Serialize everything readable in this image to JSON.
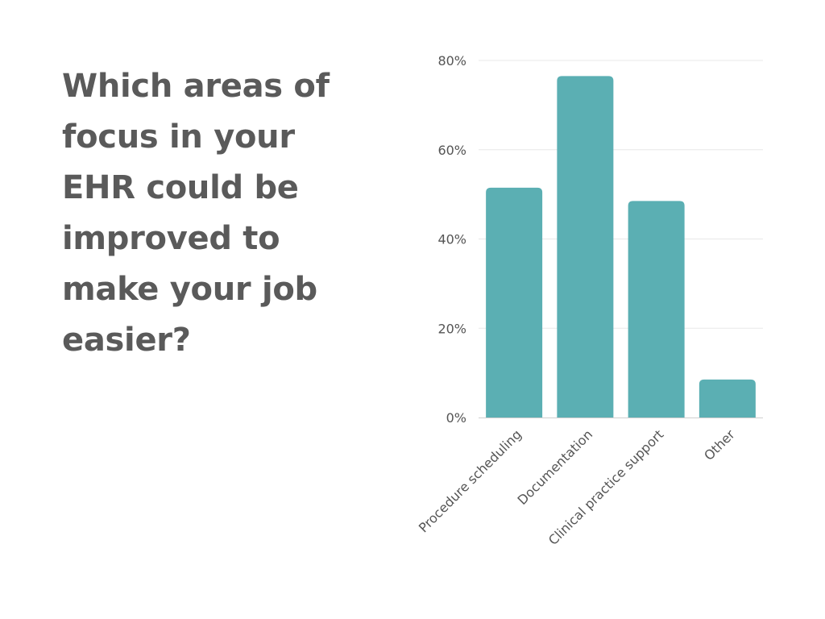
{
  "question_lines": [
    "Which areas of",
    "focus in your",
    "EHR could be",
    "improved to",
    "make your job",
    "easier?"
  ],
  "colors": {
    "bar": "#5bafb3",
    "text": "#5a5a5a",
    "grid": "#e8e8e8",
    "axis": "#cfcfcf",
    "tick_text": "#555555"
  },
  "chart_data": {
    "type": "bar",
    "categories": [
      "Procedure scheduling",
      "Documentation",
      "Clinical practice support",
      "Other"
    ],
    "values": [
      51.5,
      76.5,
      48.5,
      8.5
    ],
    "unit": "%",
    "yticks": [
      "0%",
      "20%",
      "40%",
      "60%",
      "80%"
    ],
    "ylim": [
      0,
      80
    ],
    "grid": true,
    "xlabel": "",
    "ylabel": ""
  }
}
